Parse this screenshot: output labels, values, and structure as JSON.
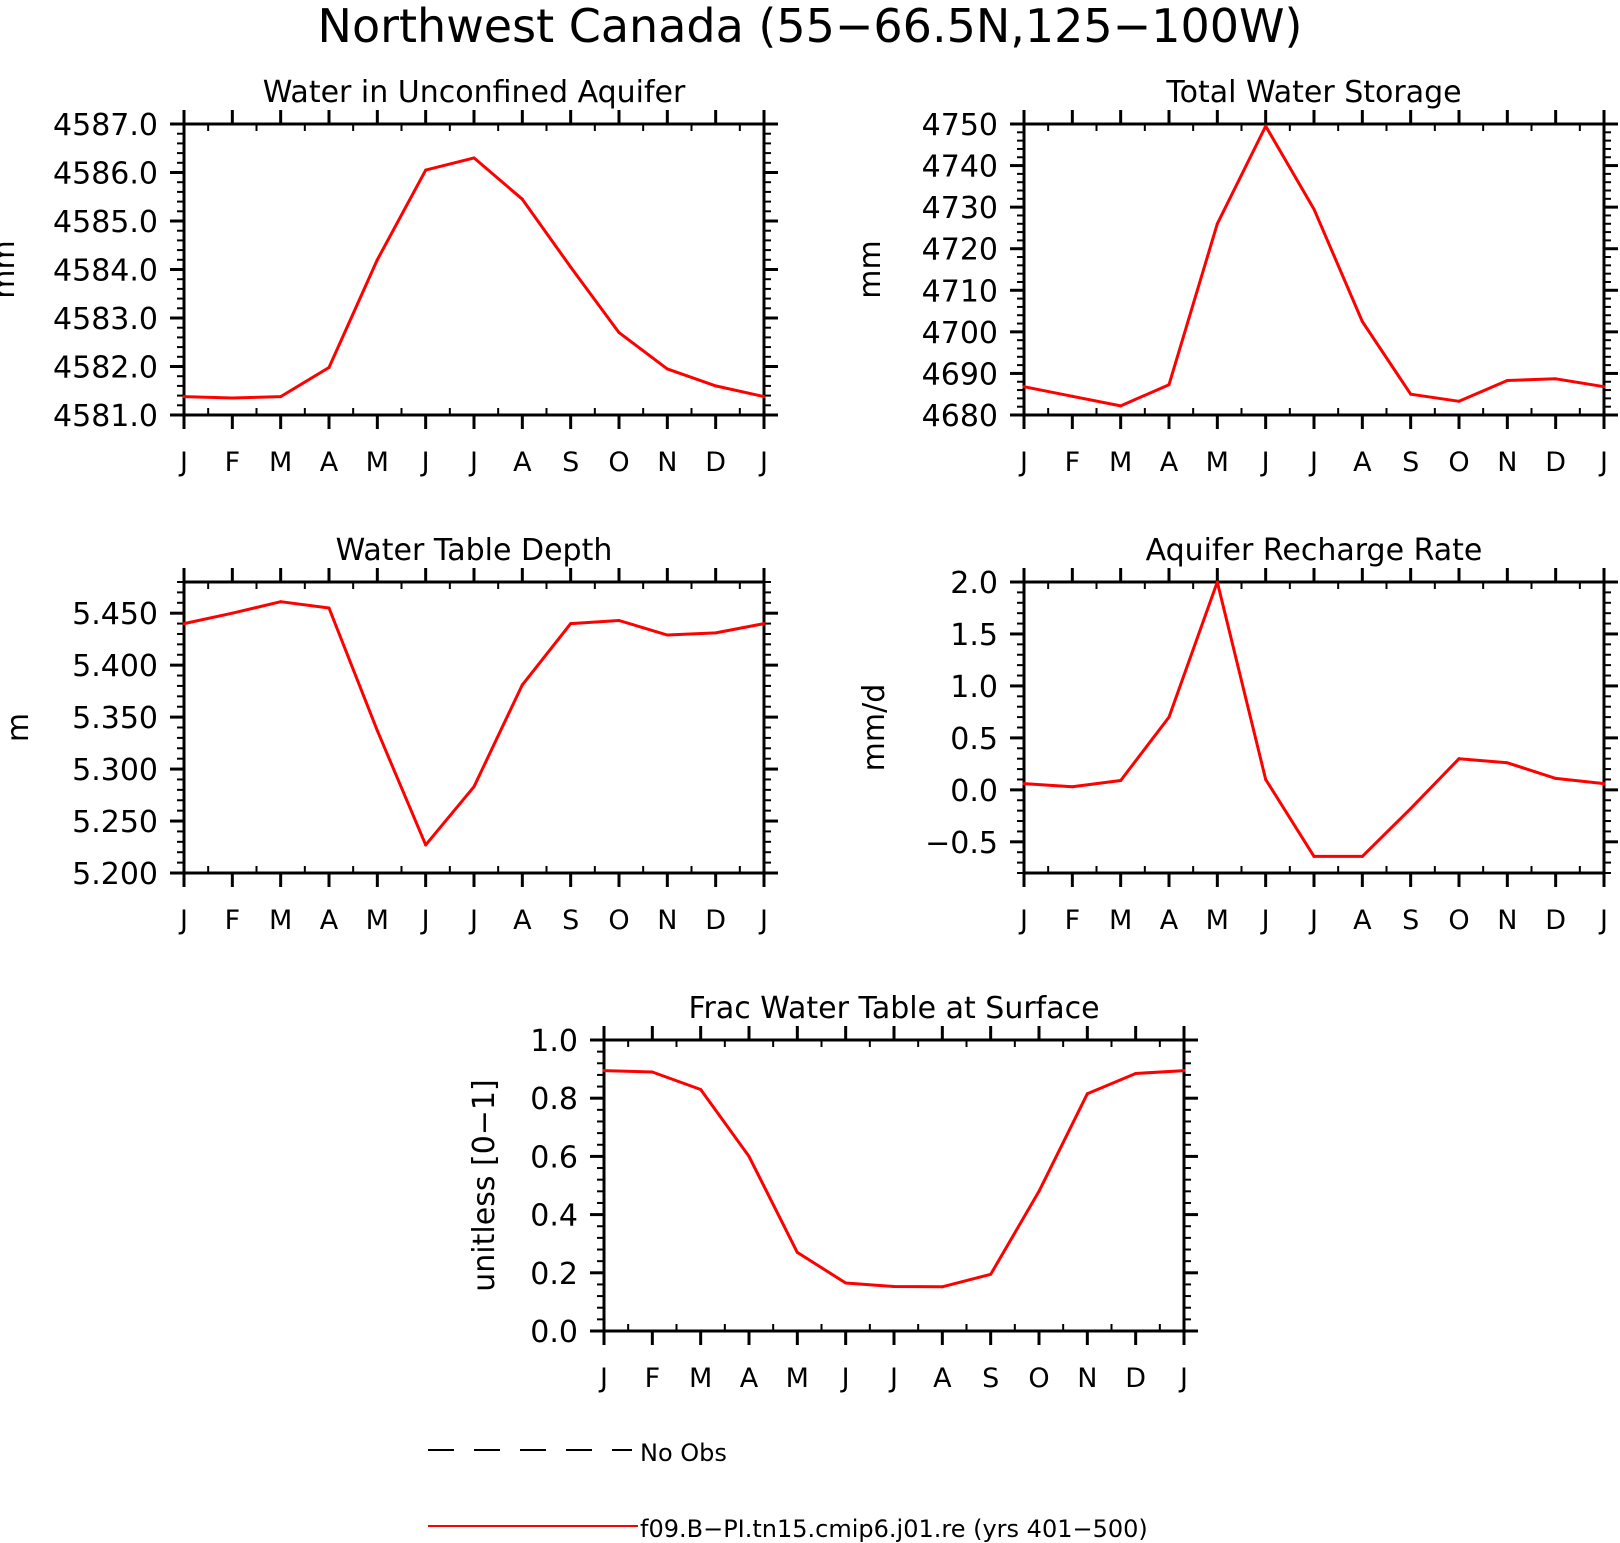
{
  "figure": {
    "title": "Northwest Canada (55−66.5N,125−100W)"
  },
  "colors": {
    "model_line": "#ff0000",
    "obs_line": "#000000",
    "axes": "#000000"
  },
  "legend": {
    "items": [
      {
        "label": "No Obs",
        "style": "dashed",
        "color": "#000000"
      },
      {
        "label": "f09.B−PI.tn15.cmip6.j01.re (yrs 401−500)",
        "style": "solid",
        "color": "#ff0000"
      }
    ]
  },
  "chart_data": [
    {
      "type": "line",
      "title": "Water in Unconfined Aquifer",
      "ylabel": "mm",
      "xlabel": "",
      "categories": [
        "J",
        "F",
        "M",
        "A",
        "M",
        "J",
        "J",
        "A",
        "S",
        "O",
        "N",
        "D",
        "J"
      ],
      "ylim": [
        4581.0,
        4587.0
      ],
      "yticks": [
        4581.0,
        4582.0,
        4583.0,
        4584.0,
        4585.0,
        4586.0,
        4587.0
      ],
      "ytick_labels": [
        "4581.0",
        "4582.0",
        "4583.0",
        "4584.0",
        "4585.0",
        "4586.0",
        "4587.0"
      ],
      "series": [
        {
          "color": "#ff0000",
          "values": [
            4581.38,
            4581.35,
            4581.38,
            4581.98,
            4584.2,
            4586.05,
            4586.3,
            4585.45,
            4584.05,
            4582.7,
            4581.95,
            4581.6,
            4581.38
          ]
        }
      ]
    },
    {
      "type": "line",
      "title": "Total Water Storage",
      "ylabel": "mm",
      "xlabel": "",
      "categories": [
        "J",
        "F",
        "M",
        "A",
        "M",
        "J",
        "J",
        "A",
        "S",
        "O",
        "N",
        "D",
        "J"
      ],
      "ylim": [
        4680,
        4750
      ],
      "yticks": [
        4680,
        4690,
        4700,
        4710,
        4720,
        4730,
        4740,
        4750
      ],
      "ytick_labels": [
        "4680",
        "4690",
        "4700",
        "4710",
        "4720",
        "4730",
        "4740",
        "4750"
      ],
      "series": [
        {
          "color": "#ff0000",
          "values": [
            4686.8,
            4684.5,
            4682.2,
            4687.3,
            4726.0,
            4749.5,
            4729.5,
            4702.5,
            4685.0,
            4683.3,
            4688.3,
            4688.7,
            4686.8
          ]
        }
      ]
    },
    {
      "type": "line",
      "title": "Water Table Depth",
      "ylabel": "m",
      "xlabel": "",
      "categories": [
        "J",
        "F",
        "M",
        "A",
        "M",
        "J",
        "J",
        "A",
        "S",
        "O",
        "N",
        "D",
        "J"
      ],
      "ylim": [
        5.2,
        5.48
      ],
      "yticks": [
        5.2,
        5.25,
        5.3,
        5.35,
        5.4,
        5.45
      ],
      "ytick_labels": [
        "5.200",
        "5.250",
        "5.300",
        "5.350",
        "5.400",
        "5.450"
      ],
      "series": [
        {
          "color": "#ff0000",
          "values": [
            5.44,
            5.45,
            5.461,
            5.455,
            5.337,
            5.227,
            5.283,
            5.381,
            5.44,
            5.443,
            5.429,
            5.431,
            5.44
          ]
        }
      ]
    },
    {
      "type": "line",
      "title": "Aquifer Recharge Rate",
      "ylabel": "mm/d",
      "xlabel": "",
      "categories": [
        "J",
        "F",
        "M",
        "A",
        "M",
        "J",
        "J",
        "A",
        "S",
        "O",
        "N",
        "D",
        "J"
      ],
      "ylim": [
        -0.8,
        2.0
      ],
      "yticks": [
        -0.5,
        0.0,
        0.5,
        1.0,
        1.5,
        2.0
      ],
      "ytick_labels": [
        "−0.5",
        "0.0",
        "0.5",
        "1.0",
        "1.5",
        "2.0"
      ],
      "series": [
        {
          "color": "#ff0000",
          "values": [
            0.06,
            0.03,
            0.09,
            0.7,
            2.0,
            0.1,
            -0.64,
            -0.64,
            -0.18,
            0.3,
            0.26,
            0.11,
            0.06
          ]
        }
      ]
    },
    {
      "type": "line",
      "title": "Frac Water Table at Surface",
      "ylabel": "unitless [0−1]",
      "xlabel": "",
      "categories": [
        "J",
        "F",
        "M",
        "A",
        "M",
        "J",
        "J",
        "A",
        "S",
        "O",
        "N",
        "D",
        "J"
      ],
      "ylim": [
        0.0,
        1.0
      ],
      "yticks": [
        0.0,
        0.2,
        0.4,
        0.6,
        0.8,
        1.0
      ],
      "ytick_labels": [
        "0.0",
        "0.2",
        "0.4",
        "0.6",
        "0.8",
        "1.0"
      ],
      "series": [
        {
          "color": "#ff0000",
          "values": [
            0.895,
            0.89,
            0.83,
            0.6,
            0.27,
            0.165,
            0.153,
            0.152,
            0.195,
            0.48,
            0.815,
            0.885,
            0.895
          ]
        }
      ]
    }
  ]
}
